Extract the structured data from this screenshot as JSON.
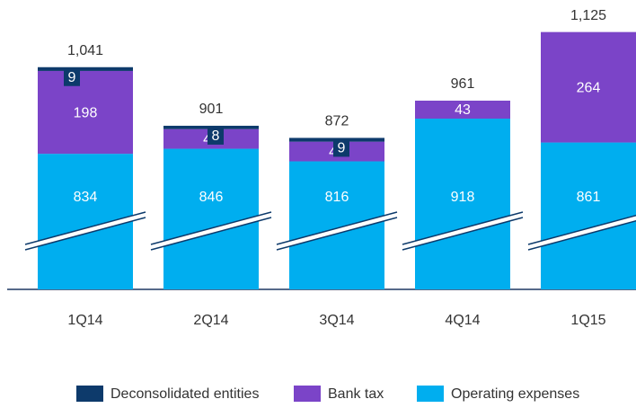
{
  "chart_data": {
    "type": "stacked_bar",
    "categories": [
      "1Q14",
      "2Q14",
      "3Q14",
      "4Q14",
      "1Q15"
    ],
    "series": [
      {
        "name": "Operating expenses",
        "color": "#00aeef",
        "values": [
          834,
          846,
          816,
          918,
          861
        ]
      },
      {
        "name": "Bank tax",
        "color": "#7b44c8",
        "values": [
          198,
          47,
          47,
          43,
          264
        ]
      },
      {
        "name": "Deconsolidated entities",
        "color": "#0d3a6b",
        "values": [
          9,
          8,
          9,
          null,
          null
        ]
      }
    ],
    "total_labels": [
      "1,041",
      "901",
      "872",
      "961",
      "1,125"
    ],
    "ylim": [
      510,
      1150
    ],
    "axis_break": true,
    "legend": "bottom"
  }
}
